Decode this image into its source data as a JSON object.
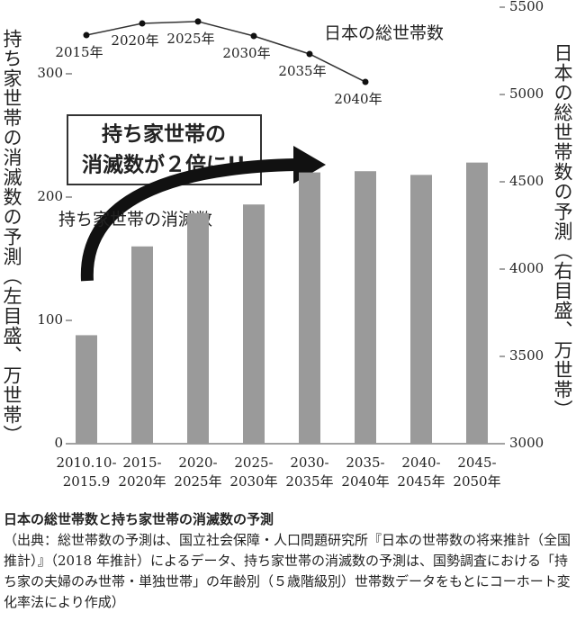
{
  "chart_data": {
    "type": "bar",
    "categories": [
      [
        "2010.10-",
        "2015.9"
      ],
      [
        "2015-",
        "2020年"
      ],
      [
        "2020-",
        "2025年"
      ],
      [
        "2025-",
        "2030年"
      ],
      [
        "2030-",
        "2035年"
      ],
      [
        "2035-",
        "2040年"
      ],
      [
        "2040-",
        "2045年"
      ],
      [
        "2045-",
        "2050年"
      ]
    ],
    "series": [
      {
        "name": "持ち家世帯の消滅数",
        "color": "#9a9a9a",
        "values": [
          88,
          160,
          187,
          194,
          220,
          221,
          218,
          228
        ]
      },
      {
        "name": "日本の総世帯数",
        "type": "line",
        "axis": "y2",
        "color": "#333333",
        "values": [
          5340,
          5407,
          5418,
          5335,
          5232,
          5072,
          null,
          null
        ],
        "point_labels": [
          "2015年",
          "2020年",
          "2025年",
          "2030年",
          "2035年",
          "2040年",
          null,
          null
        ]
      }
    ],
    "ylim": [
      0,
      354
    ],
    "yticks": [
      0,
      100,
      200,
      300
    ],
    "y2lim": [
      3000,
      5500
    ],
    "y2ticks": [
      3000,
      3500,
      4000,
      4500,
      5000,
      5500
    ],
    "ylabel": "持ち家世帯の消滅数の予測（左目盛、万世帯）",
    "y2label": "日本の総世帯数の予測（右目盛、万世帯）",
    "callout": [
      "持ち家世帯の",
      "消滅数が２倍に!!"
    ],
    "caption_title": "日本の総世帯数と持ち家世帯の消滅数の予測",
    "caption_source": "（出典：総世帯数の予測は、国立社会保障・人口問題研究所『日本の世帯数の将来推計（全国推計）』（2018 年推計）によるデータ、持ち家世帯の消滅数の予測は、国勢調査における「持ち家の夫婦のみ世帯・単独世帯」の年齢別（５歳階級別）世帯数データをもとにコーホート変化率法により作成）"
  }
}
